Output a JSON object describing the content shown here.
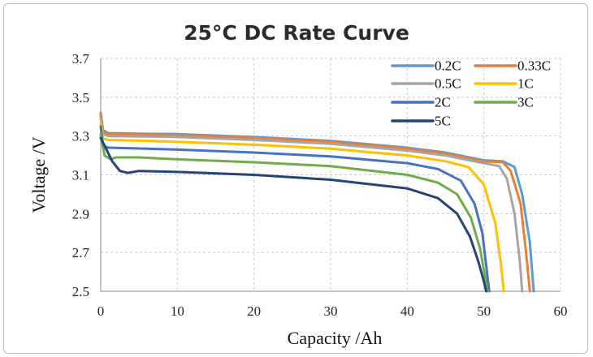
{
  "chart_data": {
    "type": "line",
    "title": "25°C DC Rate Curve",
    "xlabel": "Capacity /Ah",
    "ylabel": "Voltage /V",
    "xlim": [
      0,
      60
    ],
    "ylim": [
      2.5,
      3.7
    ],
    "xticks": [
      0,
      10,
      20,
      30,
      40,
      50,
      60
    ],
    "yticks": [
      "2.5",
      "2.7",
      "2.9",
      "3.1",
      "3.3",
      "3.5",
      "3.7"
    ],
    "grid": true,
    "legend_position": "top-right",
    "series": [
      {
        "name": "0.2C",
        "color": "#5b9bd5",
        "x": [
          0,
          0.3,
          1,
          5,
          10,
          20,
          30,
          40,
          45,
          50,
          52.5,
          54,
          55,
          56,
          56.5
        ],
        "y": [
          3.42,
          3.33,
          3.315,
          3.312,
          3.31,
          3.295,
          3.275,
          3.24,
          3.215,
          3.175,
          3.17,
          3.14,
          3.0,
          2.75,
          2.5
        ]
      },
      {
        "name": "0.33C",
        "color": "#ed7d31",
        "x": [
          0,
          0.3,
          1,
          5,
          10,
          20,
          30,
          40,
          45,
          50,
          52.5,
          53.5,
          54.8,
          55.5,
          56.0
        ],
        "y": [
          3.41,
          3.32,
          3.31,
          3.308,
          3.305,
          3.29,
          3.27,
          3.235,
          3.21,
          3.17,
          3.165,
          3.12,
          2.95,
          2.7,
          2.5
        ]
      },
      {
        "name": "0.5C",
        "color": "#a5a5a5",
        "x": [
          0,
          0.3,
          1,
          5,
          10,
          20,
          30,
          40,
          45,
          50,
          52,
          53,
          54,
          54.7,
          55.0
        ],
        "y": [
          3.39,
          3.31,
          3.3,
          3.298,
          3.295,
          3.28,
          3.26,
          3.225,
          3.2,
          3.16,
          3.145,
          3.08,
          2.9,
          2.65,
          2.5
        ]
      },
      {
        "name": "1C",
        "color": "#ffc000",
        "x": [
          0,
          0.3,
          1,
          5,
          10,
          20,
          30,
          40,
          45,
          48,
          50,
          51.5,
          52.2,
          52.6
        ],
        "y": [
          3.37,
          3.29,
          3.28,
          3.276,
          3.27,
          3.255,
          3.235,
          3.2,
          3.17,
          3.14,
          3.05,
          2.85,
          2.65,
          2.5
        ]
      },
      {
        "name": "2C",
        "color": "#4472c4",
        "x": [
          0,
          0.3,
          1,
          5,
          10,
          20,
          30,
          40,
          44,
          47,
          48.8,
          49.8,
          50.4,
          50.7
        ],
        "y": [
          3.35,
          3.25,
          3.24,
          3.236,
          3.23,
          3.215,
          3.195,
          3.16,
          3.13,
          3.07,
          2.95,
          2.8,
          2.6,
          2.5
        ]
      },
      {
        "name": "3C",
        "color": "#70ad47",
        "x": [
          0,
          0.5,
          1.3,
          2,
          5,
          10,
          20,
          30,
          40,
          44,
          46.5,
          48.3,
          49.5,
          50.2,
          50.5
        ],
        "y": [
          3.31,
          3.2,
          3.18,
          3.19,
          3.19,
          3.18,
          3.165,
          3.145,
          3.1,
          3.06,
          3.0,
          2.88,
          2.72,
          2.56,
          2.5
        ]
      },
      {
        "name": "5C",
        "color": "#264478",
        "x": [
          0,
          0.5,
          1.5,
          2.5,
          3.5,
          5,
          10,
          20,
          30,
          40,
          44,
          46.5,
          48.2,
          49.3,
          50.0,
          50.3
        ],
        "y": [
          3.29,
          3.25,
          3.17,
          3.12,
          3.11,
          3.12,
          3.115,
          3.1,
          3.075,
          3.03,
          2.98,
          2.9,
          2.78,
          2.65,
          2.55,
          2.5
        ]
      }
    ]
  }
}
